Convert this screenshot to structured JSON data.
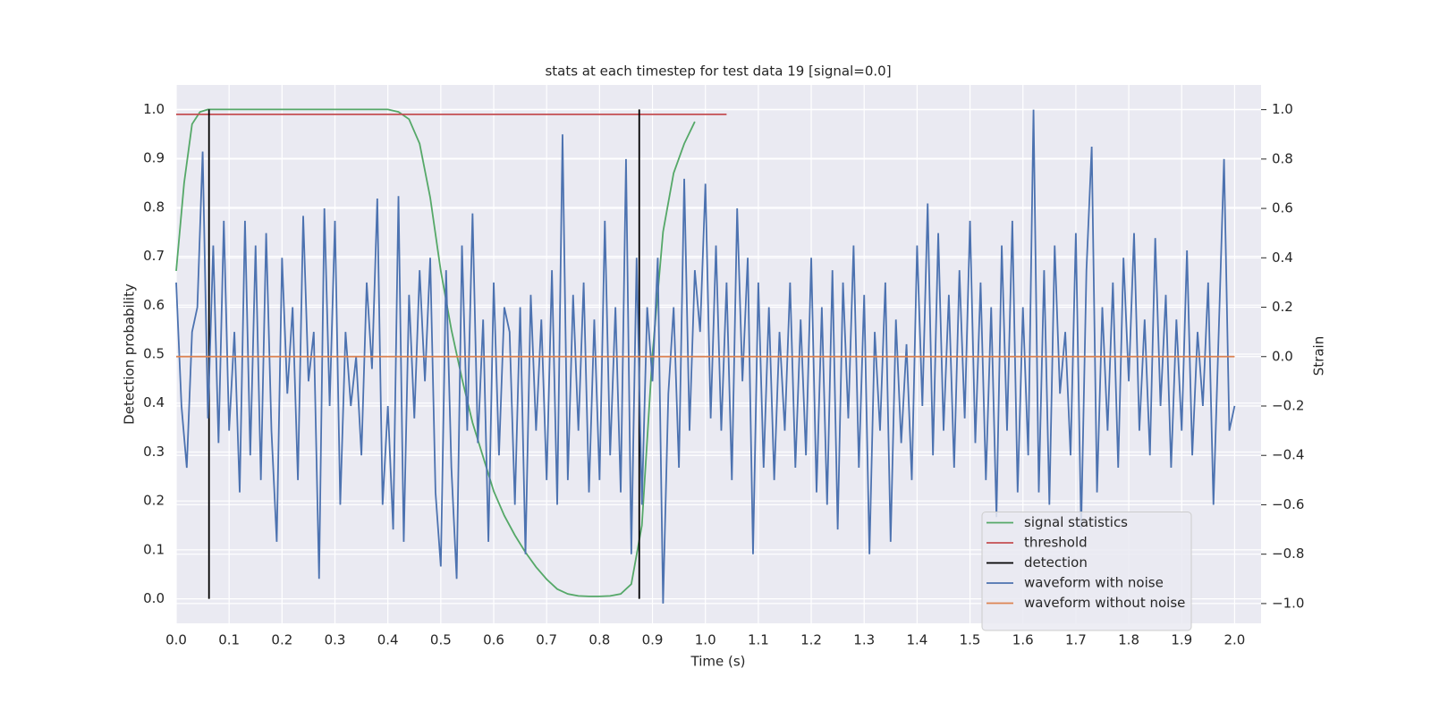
{
  "chart_data": {
    "type": "line",
    "title": "stats at each timestep for test data 19 [signal=0.0]",
    "xlabel": "Time (s)",
    "ylabel": "Detection probability",
    "y2label": "Strain",
    "xlim": [
      0,
      2.05
    ],
    "ylim": [
      -0.05,
      1.05
    ],
    "y2lim": [
      -1.08,
      1.1
    ],
    "xticks": [
      {
        "value": 0,
        "label": "0.0"
      },
      {
        "value": 0.1,
        "label": "0.1"
      },
      {
        "value": 0.2,
        "label": "0.2"
      },
      {
        "value": 0.3,
        "label": "0.3"
      },
      {
        "value": 0.4,
        "label": "0.4"
      },
      {
        "value": 0.5,
        "label": "0.5"
      },
      {
        "value": 0.6,
        "label": "0.6"
      },
      {
        "value": 0.7,
        "label": "0.7"
      },
      {
        "value": 0.8,
        "label": "0.8"
      },
      {
        "value": 0.9,
        "label": "0.9"
      },
      {
        "value": 1,
        "label": "1.0"
      },
      {
        "value": 1.1,
        "label": "1.1"
      },
      {
        "value": 1.2,
        "label": "1.2"
      },
      {
        "value": 1.3,
        "label": "1.3"
      },
      {
        "value": 1.4,
        "label": "1.4"
      },
      {
        "value": 1.5,
        "label": "1.5"
      },
      {
        "value": 1.6,
        "label": "1.6"
      },
      {
        "value": 1.7,
        "label": "1.7"
      },
      {
        "value": 1.8,
        "label": "1.8"
      },
      {
        "value": 1.9,
        "label": "1.9"
      },
      {
        "value": 2,
        "label": "2.0"
      }
    ],
    "yticks": [
      {
        "value": 0,
        "label": "0.0"
      },
      {
        "value": 0.1,
        "label": "0.1"
      },
      {
        "value": 0.2,
        "label": "0.2"
      },
      {
        "value": 0.3,
        "label": "0.3"
      },
      {
        "value": 0.4,
        "label": "0.4"
      },
      {
        "value": 0.5,
        "label": "0.5"
      },
      {
        "value": 0.6,
        "label": "0.6"
      },
      {
        "value": 0.7,
        "label": "0.7"
      },
      {
        "value": 0.8,
        "label": "0.8"
      },
      {
        "value": 0.9,
        "label": "0.9"
      },
      {
        "value": 1,
        "label": "1.0"
      }
    ],
    "y2ticks": [
      {
        "value": -1,
        "label": "−1.0"
      },
      {
        "value": -0.8,
        "label": "−0.8"
      },
      {
        "value": -0.6,
        "label": "−0.6"
      },
      {
        "value": -0.4,
        "label": "−0.4"
      },
      {
        "value": -0.2,
        "label": "−0.2"
      },
      {
        "value": 0,
        "label": "0.0"
      },
      {
        "value": 0.2,
        "label": "0.2"
      },
      {
        "value": 0.4,
        "label": "0.4"
      },
      {
        "value": 0.6,
        "label": "0.6"
      },
      {
        "value": 0.8,
        "label": "0.8"
      },
      {
        "value": 1,
        "label": "1.0"
      }
    ],
    "grid": true,
    "legend": "lower right",
    "series": [
      {
        "name": "signal statistics",
        "color": "#55a868",
        "axis": "y",
        "x": [
          0,
          0.015,
          0.03,
          0.045,
          0.06,
          0.1,
          0.2,
          0.3,
          0.4,
          0.42,
          0.44,
          0.46,
          0.48,
          0.5,
          0.52,
          0.54,
          0.56,
          0.58,
          0.6,
          0.62,
          0.64,
          0.66,
          0.68,
          0.7,
          0.72,
          0.74,
          0.76,
          0.78,
          0.8,
          0.82,
          0.84,
          0.86,
          0.88,
          0.9,
          0.92,
          0.94,
          0.96,
          0.98
        ],
        "values": [
          0.67,
          0.85,
          0.97,
          0.995,
          1,
          1,
          1,
          1,
          1,
          0.995,
          0.98,
          0.93,
          0.82,
          0.67,
          0.55,
          0.45,
          0.36,
          0.29,
          0.22,
          0.17,
          0.13,
          0.095,
          0.065,
          0.04,
          0.02,
          0.01,
          0.006,
          0.005,
          0.005,
          0.006,
          0.01,
          0.03,
          0.15,
          0.5,
          0.75,
          0.87,
          0.93,
          0.975
        ]
      },
      {
        "name": "threshold",
        "color": "#c44e52",
        "axis": "y",
        "x": [
          0,
          1.04
        ],
        "values": [
          0.99,
          0.99
        ]
      },
      {
        "name": "detection",
        "color": "#000000",
        "axis": "y",
        "x": [
          0.062,
          0.062,
          null,
          0.875,
          0.875
        ],
        "values": [
          0,
          1,
          null,
          0,
          1
        ]
      },
      {
        "name": "waveform with noise",
        "color": "#4c72b0",
        "axis": "y2",
        "x": [
          0,
          0.01,
          0.02,
          0.03,
          0.04,
          0.05,
          0.06,
          0.07,
          0.08,
          0.09,
          0.1,
          0.11,
          0.12,
          0.13,
          0.14,
          0.15,
          0.16,
          0.17,
          0.18,
          0.19,
          0.2,
          0.21,
          0.22,
          0.23,
          0.24,
          0.25,
          0.26,
          0.27,
          0.28,
          0.29,
          0.3,
          0.31,
          0.32,
          0.33,
          0.34,
          0.35,
          0.36,
          0.37,
          0.38,
          0.39,
          0.4,
          0.41,
          0.42,
          0.43,
          0.44,
          0.45,
          0.46,
          0.47,
          0.48,
          0.49,
          0.5,
          0.51,
          0.52,
          0.53,
          0.54,
          0.55,
          0.56,
          0.57,
          0.58,
          0.59,
          0.6,
          0.61,
          0.62,
          0.63,
          0.64,
          0.65,
          0.66,
          0.67,
          0.68,
          0.69,
          0.7,
          0.71,
          0.72,
          0.73,
          0.74,
          0.75,
          0.76,
          0.77,
          0.78,
          0.79,
          0.8,
          0.81,
          0.82,
          0.83,
          0.84,
          0.85,
          0.86,
          0.87,
          0.88,
          0.89,
          0.9,
          0.91,
          0.92,
          0.93,
          0.94,
          0.95,
          0.96,
          0.97,
          0.98,
          0.99,
          1,
          1.01,
          1.02,
          1.03,
          1.04,
          1.05,
          1.06,
          1.07,
          1.08,
          1.09,
          1.1,
          1.11,
          1.12,
          1.13,
          1.14,
          1.15,
          1.16,
          1.17,
          1.18,
          1.19,
          1.2,
          1.21,
          1.22,
          1.23,
          1.24,
          1.25,
          1.26,
          1.27,
          1.28,
          1.29,
          1.3,
          1.31,
          1.32,
          1.33,
          1.34,
          1.35,
          1.36,
          1.37,
          1.38,
          1.39,
          1.4,
          1.41,
          1.42,
          1.43,
          1.44,
          1.45,
          1.46,
          1.47,
          1.48,
          1.49,
          1.5,
          1.51,
          1.52,
          1.53,
          1.54,
          1.55,
          1.56,
          1.57,
          1.58,
          1.59,
          1.6,
          1.61,
          1.62,
          1.63,
          1.64,
          1.65,
          1.66,
          1.67,
          1.68,
          1.69,
          1.7,
          1.71,
          1.72,
          1.73,
          1.74,
          1.75,
          1.76,
          1.77,
          1.78,
          1.79,
          1.8,
          1.81,
          1.82,
          1.83,
          1.84,
          1.85,
          1.86,
          1.87,
          1.88,
          1.89,
          1.9,
          1.91,
          1.92,
          1.93,
          1.94,
          1.95,
          1.96,
          1.97,
          1.98,
          1.99,
          2
        ],
        "values": [
          0.3,
          -0.2,
          -0.45,
          0.1,
          0.2,
          0.83,
          -0.25,
          0.45,
          -0.35,
          0.55,
          -0.3,
          0.1,
          -0.55,
          0.55,
          -0.4,
          0.45,
          -0.5,
          0.5,
          -0.3,
          -0.75,
          0.4,
          -0.15,
          0.2,
          -0.5,
          0.57,
          -0.1,
          0.1,
          -0.9,
          0.6,
          -0.2,
          0.55,
          -0.6,
          0.1,
          -0.2,
          0,
          -0.4,
          0.3,
          -0.05,
          0.64,
          -0.6,
          -0.2,
          -0.7,
          0.65,
          -0.75,
          0.25,
          -0.25,
          0.35,
          -0.1,
          0.4,
          -0.55,
          -0.85,
          0.35,
          -0.45,
          -0.9,
          0.45,
          -0.3,
          0.58,
          -0.35,
          0.15,
          -0.75,
          0.3,
          -0.4,
          0.2,
          0.1,
          -0.6,
          0.2,
          -0.8,
          0.25,
          -0.3,
          0.15,
          -0.5,
          0.35,
          -0.6,
          0.9,
          -0.5,
          0.25,
          -0.3,
          0.3,
          -0.55,
          0.15,
          -0.5,
          0.55,
          -0.4,
          0.2,
          -0.55,
          0.8,
          -0.8,
          0.4,
          -0.6,
          0.2,
          -0.1,
          0.4,
          -1,
          -0.15,
          0.2,
          -0.45,
          0.72,
          -0.3,
          0.35,
          0.1,
          0.7,
          -0.25,
          0.45,
          -0.3,
          0.3,
          -0.5,
          0.6,
          -0.1,
          0.4,
          -0.8,
          0.3,
          -0.45,
          0.2,
          -0.5,
          0.1,
          -0.3,
          0.3,
          -0.45,
          0.15,
          -0.4,
          0.4,
          -0.55,
          0.2,
          -0.6,
          0.35,
          -0.7,
          0.3,
          -0.25,
          0.45,
          -0.45,
          0.25,
          -0.8,
          0.1,
          -0.3,
          0.3,
          -0.75,
          0.15,
          -0.35,
          0.05,
          -0.5,
          0.45,
          -0.2,
          0.62,
          -0.4,
          0.5,
          -0.3,
          0.25,
          -0.45,
          0.35,
          -0.25,
          0.55,
          -0.35,
          0.3,
          -0.5,
          0.2,
          -0.65,
          0.45,
          -0.3,
          0.55,
          -0.55,
          0.2,
          -0.4,
          1,
          -0.55,
          0.35,
          -0.6,
          0.45,
          -0.15,
          0.1,
          -0.4,
          0.5,
          -0.7,
          0.35,
          0.85,
          -0.55,
          0.2,
          -0.3,
          0.3,
          -0.45,
          0.4,
          -0.1,
          0.5,
          -0.3,
          0.15,
          -0.4,
          0.48,
          -0.2,
          0.25,
          -0.45,
          0.15,
          -0.3,
          0.43,
          -0.4,
          0.1,
          -0.2,
          0.3,
          -0.6,
          0.1,
          0.8,
          -0.3,
          -0.2
        ]
      },
      {
        "name": "waveform without noise",
        "color": "#dd8452",
        "axis": "y2",
        "x": [
          0,
          2
        ],
        "values": [
          0,
          0
        ]
      }
    ]
  }
}
